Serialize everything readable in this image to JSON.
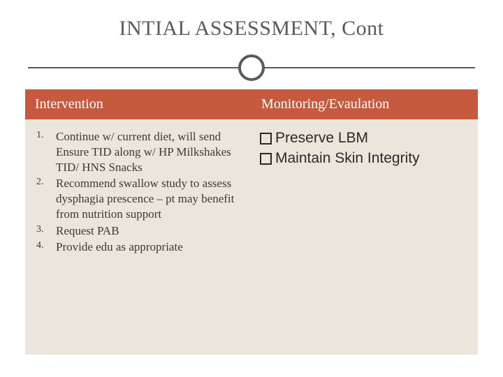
{
  "title": "INTIAL ASSESSMENT, Cont",
  "colors": {
    "header_bg": "#c55a3f",
    "header_text": "#ffffff",
    "body_bg": "#ece5db",
    "body_text": "#3a3a3a",
    "title_text": "#5a5a5a",
    "divider": "#5a5a5a"
  },
  "typography": {
    "title_fontsize": 30,
    "header_fontsize": 20,
    "list_fontsize": 17,
    "bullet_fontsize": 21
  },
  "left": {
    "header": "Intervention",
    "items": [
      "Continue w/ current diet, will send Ensure TID along w/ HP Milkshakes TID/ HNS Snacks",
      "Recommend swallow study to assess dysphagia prescence – pt may benefit from nutrition support",
      "Request PAB",
      "Provide edu as appropriate"
    ]
  },
  "right": {
    "header": "Monitoring/Evaulation",
    "items": [
      "Preserve LBM",
      "Maintain Skin Integrity"
    ]
  }
}
